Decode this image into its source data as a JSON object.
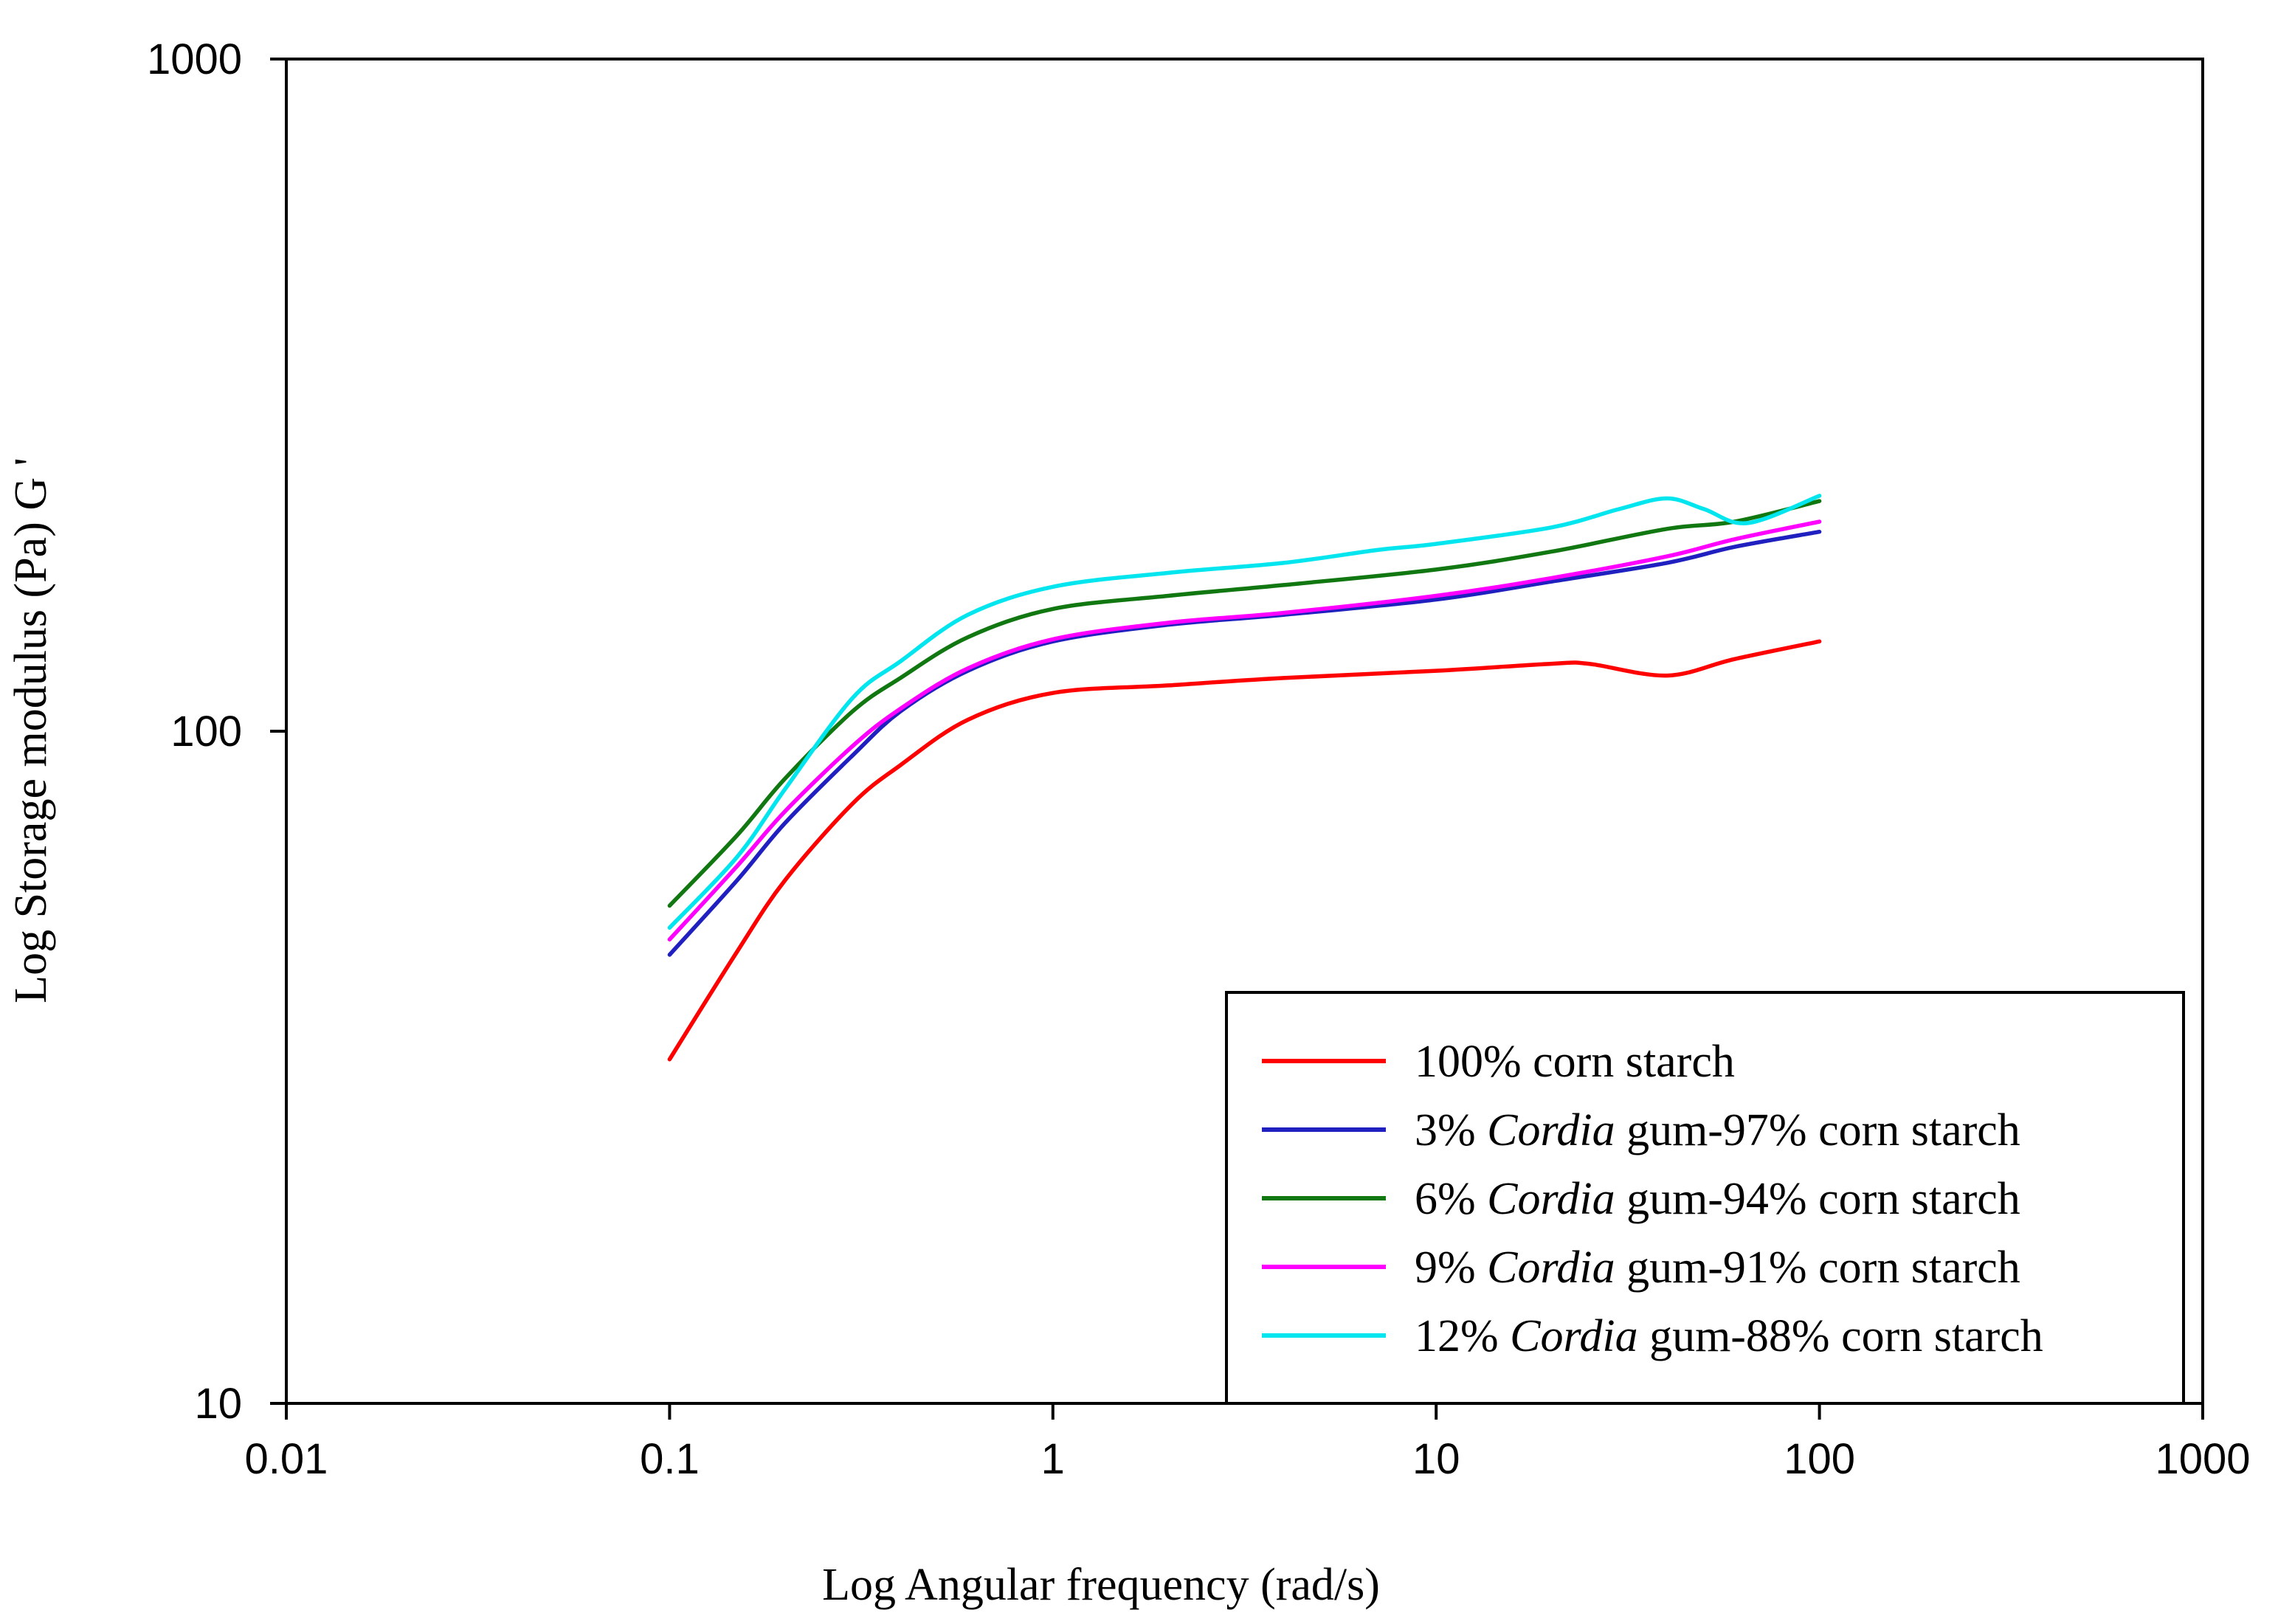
{
  "chart_data": {
    "type": "line",
    "title": "",
    "xlabel": "Log Angular frequency (rad/s)",
    "ylabel": "Log Storage modulus (Pa) G '",
    "xscale": "log",
    "yscale": "log",
    "xlim": [
      0.01,
      1000
    ],
    "ylim": [
      10,
      1000
    ],
    "xticks": [
      {
        "value": 0.01,
        "label": "0.01"
      },
      {
        "value": 0.1,
        "label": "0.1"
      },
      {
        "value": 1,
        "label": "1"
      },
      {
        "value": 10,
        "label": "10"
      },
      {
        "value": 100,
        "label": "100"
      },
      {
        "value": 1000,
        "label": "1000"
      }
    ],
    "yticks": [
      {
        "value": 10,
        "label": "10"
      },
      {
        "value": 100,
        "label": "100"
      },
      {
        "value": 1000,
        "label": "1000"
      }
    ],
    "grid": false,
    "legend_position": "bottom-right",
    "series": [
      {
        "name": "100% corn starch",
        "legend": {
          "prefix": "100% corn starch",
          "italic": "",
          "suffix": ""
        },
        "color": "#ff0000",
        "x": [
          0.1,
          0.15,
          0.2,
          0.3,
          0.4,
          0.6,
          1,
          2,
          4,
          10,
          20,
          25,
          40,
          60,
          100
        ],
        "y": [
          32.5,
          47,
          60,
          78,
          89,
          104,
          114,
          117,
          120,
          123,
          126,
          126,
          121,
          128,
          136
        ]
      },
      {
        "name": "3% Cordia gum-97% corn starch",
        "legend": {
          "prefix": "3% ",
          "italic": "Cordia",
          "suffix": " gum-97% corn starch"
        },
        "color": "#2020c0",
        "x": [
          0.1,
          0.15,
          0.2,
          0.3,
          0.4,
          0.6,
          1,
          2,
          4,
          10,
          20,
          40,
          60,
          100
        ],
        "y": [
          46.5,
          60,
          73,
          92,
          107,
          123,
          136,
          144,
          149,
          157,
          167,
          178,
          188,
          198
        ]
      },
      {
        "name": "6% Cordia gum-94% corn starch",
        "legend": {
          "prefix": "6% ",
          "italic": "Cordia",
          "suffix": " gum-94% corn starch"
        },
        "color": "#117711",
        "x": [
          0.1,
          0.15,
          0.2,
          0.3,
          0.4,
          0.6,
          1,
          2,
          4,
          10,
          20,
          40,
          60,
          100
        ],
        "y": [
          55,
          70,
          85,
          107,
          120,
          138,
          152,
          159,
          165,
          174,
          185,
          200,
          205,
          220
        ]
      },
      {
        "name": "9% Cordia gum-91% corn starch",
        "legend": {
          "prefix": "9% ",
          "italic": "Cordia",
          "suffix": " gum-91% corn starch"
        },
        "color": "#ff00ff",
        "x": [
          0.1,
          0.15,
          0.2,
          0.3,
          0.4,
          0.6,
          1,
          2,
          4,
          10,
          20,
          40,
          60,
          100
        ],
        "y": [
          49,
          63,
          76,
          95,
          108,
          124,
          137,
          145,
          150,
          159,
          169,
          182,
          193,
          205
        ]
      },
      {
        "name": "12% Cordia gum-88% corn starch",
        "legend": {
          "prefix": "12% ",
          "italic": "Cordia",
          "suffix": " gum-88% corn starch"
        },
        "color": "#00e5ee",
        "x": [
          0.1,
          0.15,
          0.2,
          0.3,
          0.4,
          0.6,
          1,
          2,
          4,
          7,
          10,
          20,
          30,
          40,
          50,
          65,
          100
        ],
        "y": [
          51,
          65,
          82,
          112,
          127,
          149,
          164,
          172,
          178,
          186,
          190,
          201,
          214,
          222,
          214,
          204,
          224
        ]
      }
    ]
  }
}
